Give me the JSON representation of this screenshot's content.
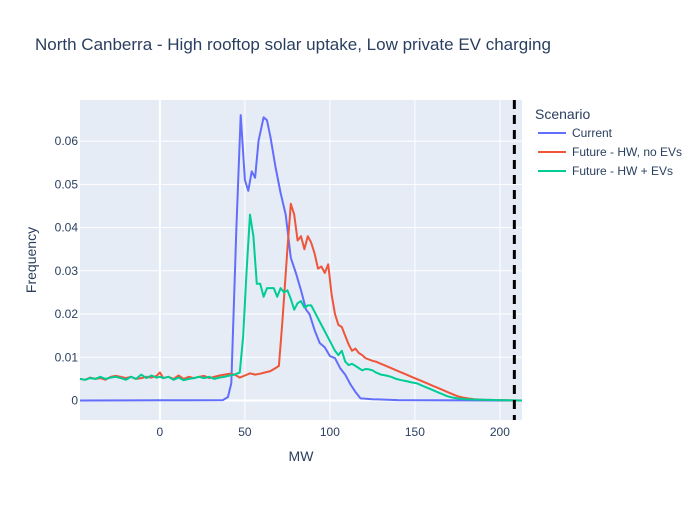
{
  "chart_data": {
    "type": "line",
    "title": "North Canberra - High rooftop solar uptake, Low private EV charging",
    "xlabel": "MW",
    "ylabel": "Frequency",
    "xlim": [
      -47,
      213
    ],
    "ylim": [
      -0.0045,
      0.0695
    ],
    "xticks": [
      0,
      50,
      100,
      150,
      200
    ],
    "xtick_labels": [
      "0",
      "50",
      "100",
      "150",
      "200"
    ],
    "yticks": [
      0,
      0.01,
      0.02,
      0.03,
      0.04,
      0.05,
      0.06
    ],
    "ytick_labels": [
      "0",
      "0.01",
      "0.02",
      "0.03",
      "0.04",
      "0.05",
      "0.06"
    ],
    "grid": true,
    "legend": {
      "title": "Scenario",
      "position": "right"
    },
    "vertical_line": {
      "x": 208.5,
      "style": "dashed",
      "color": "#000000"
    },
    "series": [
      {
        "name": "Current",
        "color": "#636efa",
        "points": [
          [
            -47,
            0
          ],
          [
            0,
            5e-05
          ],
          [
            20,
            8e-05
          ],
          [
            37,
            0.0001
          ],
          [
            40,
            0.0008
          ],
          [
            42,
            0.004
          ],
          [
            45,
            0.04
          ],
          [
            47.5,
            0.066
          ],
          [
            50,
            0.051
          ],
          [
            52,
            0.0485
          ],
          [
            54,
            0.053
          ],
          [
            56,
            0.0515
          ],
          [
            58,
            0.06
          ],
          [
            61,
            0.0655
          ],
          [
            63,
            0.0648
          ],
          [
            65,
            0.061
          ],
          [
            68,
            0.054
          ],
          [
            71,
            0.048
          ],
          [
            74,
            0.043
          ],
          [
            77,
            0.033
          ],
          [
            80,
            0.0295
          ],
          [
            83,
            0.0255
          ],
          [
            86,
            0.021
          ],
          [
            88,
            0.02
          ],
          [
            91,
            0.0163
          ],
          [
            94,
            0.0133
          ],
          [
            97,
            0.0123
          ],
          [
            100,
            0.0103
          ],
          [
            103,
            0.0098
          ],
          [
            106,
            0.0075
          ],
          [
            109,
            0.006
          ],
          [
            112,
            0.0038
          ],
          [
            115,
            0.002
          ],
          [
            118,
            0.0005
          ],
          [
            125,
            0.0003
          ],
          [
            140,
            0.0001
          ],
          [
            160,
            5e-05
          ],
          [
            213,
            0
          ]
        ]
      },
      {
        "name": "Future - HW, no EVs",
        "color": "#ef553b",
        "points": [
          [
            -47,
            0.005
          ],
          [
            -44,
            0.0048
          ],
          [
            -41,
            0.0053
          ],
          [
            -38,
            0.005
          ],
          [
            -35,
            0.0052
          ],
          [
            -32,
            0.0048
          ],
          [
            -29,
            0.0055
          ],
          [
            -26,
            0.0057
          ],
          [
            -23,
            0.0055
          ],
          [
            -20,
            0.0052
          ],
          [
            -17,
            0.0055
          ],
          [
            -14,
            0.005
          ],
          [
            -11,
            0.0052
          ],
          [
            -8,
            0.0055
          ],
          [
            -5,
            0.0053
          ],
          [
            -2,
            0.0057
          ],
          [
            0,
            0.0065
          ],
          [
            2,
            0.0052
          ],
          [
            5,
            0.0055
          ],
          [
            8,
            0.005
          ],
          [
            11,
            0.0058
          ],
          [
            14,
            0.005
          ],
          [
            17,
            0.0055
          ],
          [
            20,
            0.0052
          ],
          [
            23,
            0.0055
          ],
          [
            26,
            0.0057
          ],
          [
            29,
            0.0052
          ],
          [
            32,
            0.0055
          ],
          [
            35,
            0.0058
          ],
          [
            38,
            0.006
          ],
          [
            41,
            0.0062
          ],
          [
            44,
            0.006
          ],
          [
            47,
            0.0053
          ],
          [
            50,
            0.0058
          ],
          [
            53,
            0.0063
          ],
          [
            56,
            0.006
          ],
          [
            59,
            0.0062
          ],
          [
            62,
            0.0065
          ],
          [
            65,
            0.0068
          ],
          [
            68,
            0.0075
          ],
          [
            70,
            0.008
          ],
          [
            72,
            0.018
          ],
          [
            75,
            0.035
          ],
          [
            77,
            0.0455
          ],
          [
            79,
            0.043
          ],
          [
            81,
            0.037
          ],
          [
            83,
            0.038
          ],
          [
            85,
            0.035
          ],
          [
            87,
            0.038
          ],
          [
            89,
            0.0365
          ],
          [
            91,
            0.034
          ],
          [
            93,
            0.0305
          ],
          [
            95,
            0.031
          ],
          [
            97,
            0.0295
          ],
          [
            99,
            0.0315
          ],
          [
            101,
            0.0245
          ],
          [
            103,
            0.02
          ],
          [
            105,
            0.0175
          ],
          [
            107,
            0.017
          ],
          [
            109,
            0.015
          ],
          [
            111,
            0.013
          ],
          [
            113,
            0.0115
          ],
          [
            115,
            0.012
          ],
          [
            117,
            0.011
          ],
          [
            119,
            0.0105
          ],
          [
            121,
            0.0098
          ],
          [
            123,
            0.0095
          ],
          [
            125,
            0.0092
          ],
          [
            127,
            0.009
          ],
          [
            130,
            0.0085
          ],
          [
            133,
            0.008
          ],
          [
            136,
            0.0075
          ],
          [
            139,
            0.007
          ],
          [
            142,
            0.0065
          ],
          [
            145,
            0.006
          ],
          [
            148,
            0.0055
          ],
          [
            151,
            0.005
          ],
          [
            154,
            0.0045
          ],
          [
            157,
            0.004
          ],
          [
            160,
            0.0035
          ],
          [
            163,
            0.003
          ],
          [
            166,
            0.0025
          ],
          [
            169,
            0.002
          ],
          [
            172,
            0.0015
          ],
          [
            175,
            0.001
          ],
          [
            178,
            0.0007
          ],
          [
            181,
            0.0005
          ],
          [
            185,
            0.0003
          ],
          [
            190,
            0.0002
          ],
          [
            200,
            0.0001
          ],
          [
            213,
            0
          ]
        ]
      },
      {
        "name": "Future - HW + EVs",
        "color": "#00cc96",
        "points": [
          [
            -47,
            0.005
          ],
          [
            -44,
            0.0048
          ],
          [
            -41,
            0.0052
          ],
          [
            -38,
            0.005
          ],
          [
            -35,
            0.0055
          ],
          [
            -32,
            0.005
          ],
          [
            -29,
            0.0053
          ],
          [
            -26,
            0.0055
          ],
          [
            -23,
            0.0052
          ],
          [
            -20,
            0.0048
          ],
          [
            -17,
            0.0055
          ],
          [
            -14,
            0.005
          ],
          [
            -11,
            0.006
          ],
          [
            -8,
            0.0052
          ],
          [
            -5,
            0.0058
          ],
          [
            -2,
            0.0053
          ],
          [
            0,
            0.0055
          ],
          [
            2,
            0.0052
          ],
          [
            5,
            0.0055
          ],
          [
            8,
            0.0048
          ],
          [
            11,
            0.0053
          ],
          [
            14,
            0.0047
          ],
          [
            17,
            0.005
          ],
          [
            20,
            0.0052
          ],
          [
            23,
            0.0055
          ],
          [
            26,
            0.0052
          ],
          [
            29,
            0.0055
          ],
          [
            32,
            0.005
          ],
          [
            35,
            0.0053
          ],
          [
            38,
            0.0055
          ],
          [
            41,
            0.0058
          ],
          [
            44,
            0.006
          ],
          [
            47,
            0.0065
          ],
          [
            49,
            0.015
          ],
          [
            51,
            0.03
          ],
          [
            53,
            0.043
          ],
          [
            55,
            0.038
          ],
          [
            57,
            0.027
          ],
          [
            59,
            0.027
          ],
          [
            61,
            0.024
          ],
          [
            63,
            0.026
          ],
          [
            65,
            0.026
          ],
          [
            67,
            0.026
          ],
          [
            69,
            0.024
          ],
          [
            71,
            0.026
          ],
          [
            73,
            0.025
          ],
          [
            75,
            0.0255
          ],
          [
            77,
            0.0235
          ],
          [
            79,
            0.021
          ],
          [
            81,
            0.0225
          ],
          [
            83,
            0.023
          ],
          [
            85,
            0.0215
          ],
          [
            87,
            0.022
          ],
          [
            89,
            0.022
          ],
          [
            91,
            0.0205
          ],
          [
            93,
            0.019
          ],
          [
            95,
            0.0175
          ],
          [
            97,
            0.016
          ],
          [
            99,
            0.0145
          ],
          [
            101,
            0.013
          ],
          [
            103,
            0.0115
          ],
          [
            105,
            0.0105
          ],
          [
            107,
            0.0115
          ],
          [
            109,
            0.009
          ],
          [
            111,
            0.0082
          ],
          [
            113,
            0.0085
          ],
          [
            115,
            0.008
          ],
          [
            117,
            0.0075
          ],
          [
            119,
            0.007
          ],
          [
            121,
            0.0073
          ],
          [
            123,
            0.0072
          ],
          [
            125,
            0.007
          ],
          [
            127,
            0.0065
          ],
          [
            130,
            0.006
          ],
          [
            133,
            0.0058
          ],
          [
            136,
            0.0055
          ],
          [
            139,
            0.005
          ],
          [
            142,
            0.0047
          ],
          [
            145,
            0.0045
          ],
          [
            148,
            0.0042
          ],
          [
            151,
            0.004
          ],
          [
            154,
            0.0035
          ],
          [
            157,
            0.003
          ],
          [
            160,
            0.0025
          ],
          [
            163,
            0.002
          ],
          [
            166,
            0.0015
          ],
          [
            169,
            0.001
          ],
          [
            172,
            0.0007
          ],
          [
            175,
            0.0005
          ],
          [
            180,
            0.0003
          ],
          [
            190,
            0.0002
          ],
          [
            200,
            0.0001
          ],
          [
            213,
            0
          ]
        ]
      }
    ]
  }
}
